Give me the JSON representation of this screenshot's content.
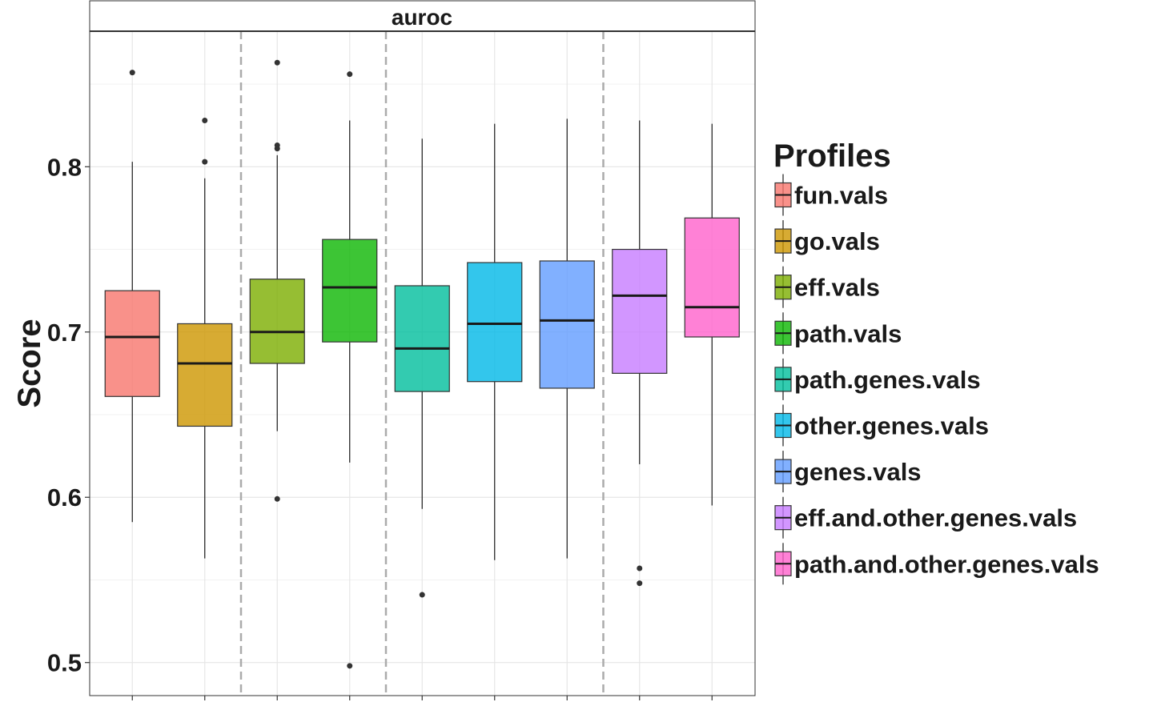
{
  "chart_data": {
    "type": "box",
    "facet_label": "auroc",
    "ylabel": "Score",
    "xlabel": "",
    "ylim": [
      0.48,
      0.882
    ],
    "yticks": [
      0.5,
      0.6,
      0.7,
      0.8
    ],
    "ytick_labels": [
      "0.5",
      "0.6",
      "0.7",
      "0.8"
    ],
    "grid": true,
    "legend_title": "Profiles",
    "legend_position": "right",
    "group_separators_after_index": [
      1,
      3,
      6
    ],
    "series": [
      {
        "name": "fun.vals",
        "color": "#F8766D",
        "q1": 0.661,
        "median": 0.697,
        "q3": 0.725,
        "whisker_low": 0.585,
        "whisker_high": 0.803,
        "outliers": [
          0.857
        ]
      },
      {
        "name": "go.vals",
        "color": "#CD9600",
        "q1": 0.643,
        "median": 0.681,
        "q3": 0.705,
        "whisker_low": 0.563,
        "whisker_high": 0.793,
        "outliers": [
          0.828,
          0.803
        ]
      },
      {
        "name": "eff.vals",
        "color": "#7CAE00",
        "q1": 0.681,
        "median": 0.7,
        "q3": 0.732,
        "whisker_low": 0.64,
        "whisker_high": 0.807,
        "outliers": [
          0.863,
          0.813,
          0.811,
          0.599
        ]
      },
      {
        "name": "path.vals",
        "color": "#0CB702",
        "q1": 0.694,
        "median": 0.727,
        "q3": 0.756,
        "whisker_low": 0.621,
        "whisker_high": 0.828,
        "outliers": [
          0.856,
          0.498
        ]
      },
      {
        "name": "path.genes.vals",
        "color": "#00BE9C",
        "q1": 0.664,
        "median": 0.69,
        "q3": 0.728,
        "whisker_low": 0.593,
        "whisker_high": 0.817,
        "outliers": [
          0.541
        ]
      },
      {
        "name": "other.genes.vals",
        "color": "#00B8E7",
        "q1": 0.67,
        "median": 0.705,
        "q3": 0.742,
        "whisker_low": 0.562,
        "whisker_high": 0.826,
        "outliers": []
      },
      {
        "name": "genes.vals",
        "color": "#619CFF",
        "q1": 0.666,
        "median": 0.707,
        "q3": 0.743,
        "whisker_low": 0.563,
        "whisker_high": 0.829,
        "outliers": []
      },
      {
        "name": "eff.and.other.genes.vals",
        "color": "#C77CFF",
        "q1": 0.675,
        "median": 0.722,
        "q3": 0.75,
        "whisker_low": 0.62,
        "whisker_high": 0.828,
        "outliers": [
          0.557,
          0.548
        ]
      },
      {
        "name": "path.and.other.genes.vals",
        "color": "#FF61CC",
        "q1": 0.697,
        "median": 0.715,
        "q3": 0.769,
        "whisker_low": 0.595,
        "whisker_high": 0.826,
        "outliers": []
      }
    ]
  }
}
